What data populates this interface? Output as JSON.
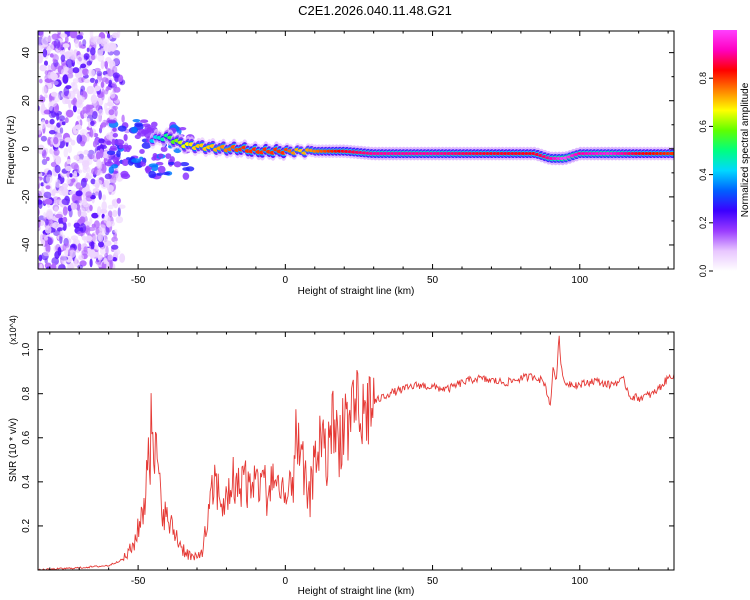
{
  "title": "C2E1.2026.040.11.48.G21",
  "chart_data": [
    {
      "type": "heatmap",
      "title": "C2E1.2026.040.11.48.G21",
      "xlabel": "Height of straight line (km)",
      "ylabel": "Frequency (Hz)",
      "xlim": [
        -84,
        132
      ],
      "ylim": [
        -50,
        49
      ],
      "xticks": [
        -50,
        0,
        50,
        100
      ],
      "yticks": [
        -40,
        -20,
        0,
        20,
        40
      ],
      "colorbar": {
        "label": "Normalized spectral amplitude",
        "range": [
          0.0,
          1.0
        ],
        "ticks": [
          0.0,
          0.2,
          0.4,
          0.6,
          0.8
        ],
        "colors": [
          "#ffffff",
          "#e8c6ff",
          "#9a3cff",
          "#3b00ff",
          "#0060ff",
          "#00d8ff",
          "#00ff80",
          "#60ff00",
          "#ffff00",
          "#ff8000",
          "#ff0000",
          "#ff00c0",
          "#ff40ff"
        ]
      },
      "ridge": {
        "x": [
          -60,
          -55,
          -50,
          -45,
          -40,
          -35,
          -30,
          -25,
          -20,
          -15,
          -10,
          -5,
          0,
          5,
          10,
          20,
          30,
          50,
          70,
          85,
          90,
          95,
          100,
          110,
          120,
          132
        ],
        "frequency": [
          1,
          2,
          3,
          4,
          5,
          2,
          1,
          0.5,
          0,
          0,
          -1,
          -1,
          -1,
          -1,
          -1,
          -1,
          -2,
          -2,
          -2,
          -2,
          -4,
          -4,
          -2,
          -2,
          -2,
          -2
        ],
        "amplitude": [
          0.25,
          0.3,
          0.45,
          0.4,
          0.5,
          0.65,
          0.7,
          0.7,
          0.75,
          0.8,
          0.8,
          0.8,
          0.8,
          0.7,
          0.75,
          0.85,
          0.9,
          0.9,
          0.85,
          0.85,
          0.9,
          1.0,
          0.9,
          0.95,
          0.85,
          0.8
        ]
      },
      "noise_region_x": [
        -84,
        -57
      ]
    },
    {
      "type": "line",
      "xlabel": "Height of straight line (km)",
      "ylabel": "SNR (10 * v/v)",
      "scale_label": "(x10^4)",
      "xlim": [
        -84,
        132
      ],
      "ylim": [
        0,
        1.08
      ],
      "xticks": [
        -50,
        0,
        50,
        100
      ],
      "yticks": [
        0.2,
        0.4,
        0.6,
        0.8,
        1.0
      ],
      "line_color": "#e53935",
      "series": [
        {
          "name": "SNR",
          "x": [
            -84,
            -70,
            -60,
            -55,
            -52,
            -50,
            -48,
            -46,
            -45,
            -44,
            -43,
            -42,
            -40,
            -38,
            -35,
            -32,
            -30,
            -28,
            -26,
            -24,
            -22,
            -20,
            -18,
            -16,
            -14,
            -12,
            -10,
            -8,
            -6,
            -4,
            -2,
            0,
            2,
            4,
            6,
            8,
            10,
            12,
            14,
            16,
            18,
            20,
            22,
            24,
            26,
            28,
            30,
            35,
            40,
            45,
            50,
            55,
            60,
            65,
            70,
            75,
            80,
            85,
            88,
            90,
            91,
            92,
            93,
            94,
            95,
            100,
            105,
            110,
            112,
            115,
            117,
            120,
            125,
            128,
            130,
            132
          ],
          "values": [
            0.0,
            0.01,
            0.02,
            0.05,
            0.1,
            0.18,
            0.3,
            0.45,
            0.65,
            0.55,
            0.4,
            0.3,
            0.22,
            0.18,
            0.1,
            0.06,
            0.05,
            0.1,
            0.25,
            0.4,
            0.32,
            0.3,
            0.42,
            0.36,
            0.45,
            0.33,
            0.38,
            0.42,
            0.34,
            0.45,
            0.3,
            0.32,
            0.35,
            0.55,
            0.45,
            0.3,
            0.5,
            0.6,
            0.48,
            0.65,
            0.58,
            0.7,
            0.62,
            0.72,
            0.68,
            0.74,
            0.76,
            0.8,
            0.82,
            0.84,
            0.83,
            0.82,
            0.85,
            0.87,
            0.86,
            0.85,
            0.87,
            0.88,
            0.85,
            0.75,
            0.92,
            0.86,
            1.06,
            0.88,
            0.85,
            0.84,
            0.86,
            0.84,
            0.85,
            0.86,
            0.79,
            0.78,
            0.8,
            0.84,
            0.87,
            0.89
          ]
        }
      ]
    }
  ]
}
